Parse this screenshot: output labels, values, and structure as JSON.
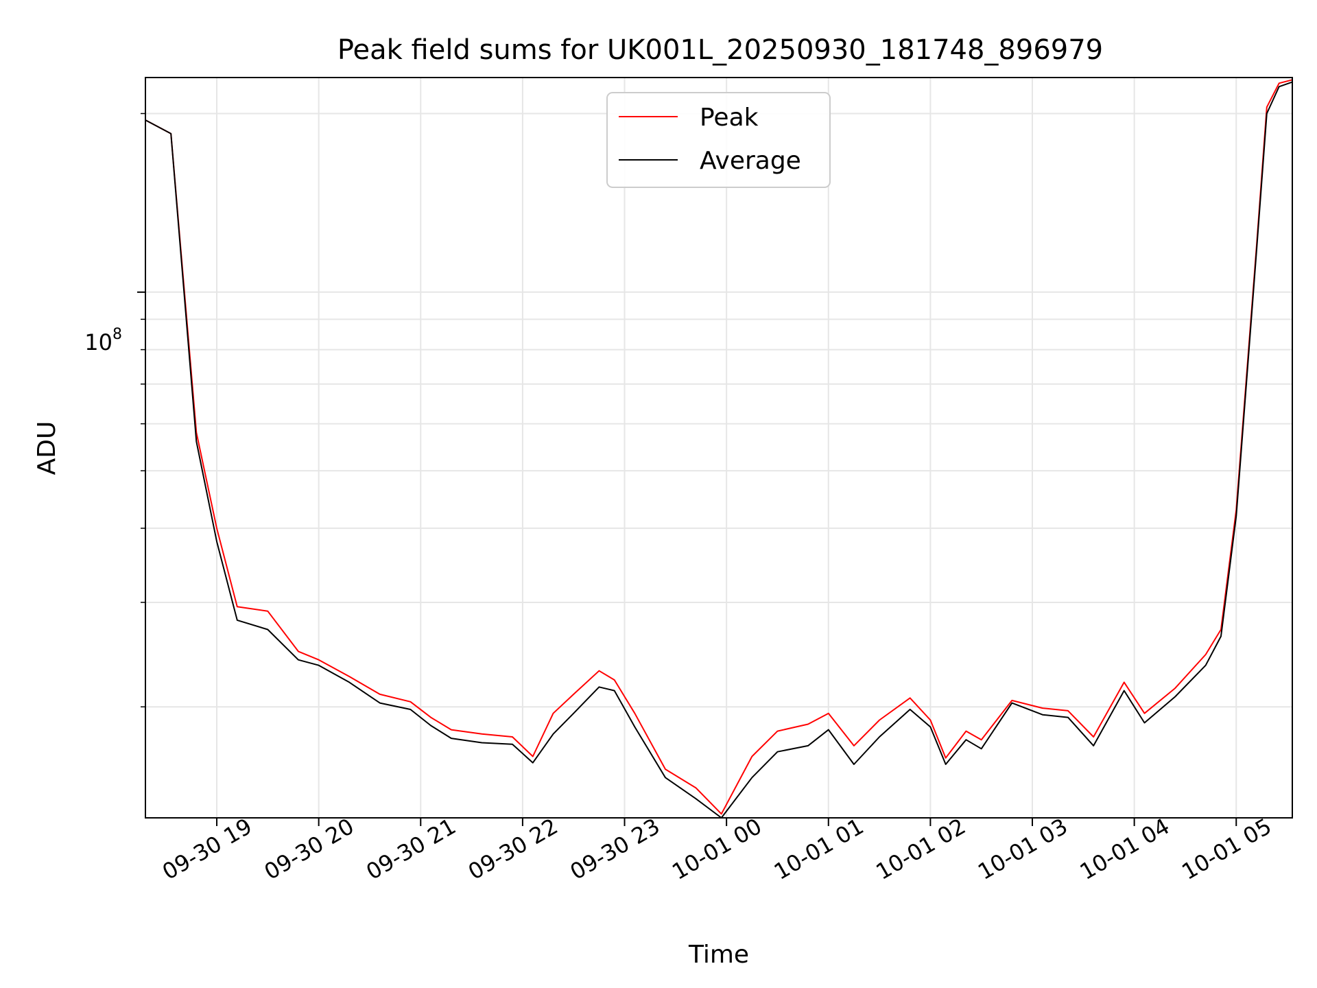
{
  "chart_data": {
    "type": "line",
    "title": "Peak field sums for UK001L_20250930_181748_896979",
    "xlabel": "Time",
    "ylabel": "ADU",
    "yscale": "log",
    "ylim": [
      13000000,
      230000000
    ],
    "xlim_hours": [
      18.3,
      5.55
    ],
    "x_ticks": [
      "09-30 19",
      "09-30 20",
      "09-30 21",
      "09-30 22",
      "09-30 23",
      "10-01 00",
      "10-01 01",
      "10-01 02",
      "10-01 03",
      "10-01 04",
      "10-01 05"
    ],
    "y_major_tick": {
      "value": 100000000,
      "base": "10",
      "exponent": "8"
    },
    "y_minor_ticks": [
      20000000,
      30000000,
      40000000,
      50000000,
      60000000,
      70000000,
      80000000,
      90000000,
      200000000
    ],
    "grid": true,
    "legend": {
      "position": "top-center",
      "entries": [
        "Peak",
        "Average"
      ]
    },
    "colors": {
      "peak": "#ff0000",
      "average": "#000000"
    },
    "series": [
      {
        "name": "Peak",
        "x_hours": [
          18.3,
          18.55,
          18.8,
          19.0,
          19.2,
          19.5,
          19.8,
          20.0,
          20.3,
          20.6,
          20.9,
          21.1,
          21.3,
          21.6,
          21.9,
          22.1,
          22.3,
          22.5,
          22.75,
          22.9,
          23.1,
          23.4,
          23.7,
          23.95,
          24.25,
          24.5,
          24.8,
          25.0,
          25.25,
          25.5,
          25.8,
          26.0,
          26.15,
          26.35,
          26.5,
          26.8,
          27.1,
          27.35,
          27.6,
          27.9,
          28.1,
          28.4,
          28.7,
          28.85,
          29.0,
          29.2,
          29.3,
          29.42,
          29.55
        ],
        "values": [
          195000000,
          185000000,
          58000000,
          40000000,
          29500000,
          29000000,
          24800000,
          24000000,
          22500000,
          21000000,
          20400000,
          19200000,
          18300000,
          18000000,
          17800000,
          16500000,
          19500000,
          21000000,
          23000000,
          22200000,
          19500000,
          15700000,
          14600000,
          13200000,
          16500000,
          18200000,
          18700000,
          19500000,
          17200000,
          19000000,
          20700000,
          19000000,
          16400000,
          18200000,
          17600000,
          20500000,
          19900000,
          19700000,
          17800000,
          22000000,
          19500000,
          21500000,
          24500000,
          27000000,
          43000000,
          120000000,
          205000000,
          225000000,
          228000000
        ]
      },
      {
        "name": "Average",
        "x_hours": [
          18.3,
          18.55,
          18.8,
          19.0,
          19.2,
          19.5,
          19.8,
          20.0,
          20.3,
          20.6,
          20.9,
          21.1,
          21.3,
          21.6,
          21.9,
          22.1,
          22.3,
          22.5,
          22.75,
          22.9,
          23.1,
          23.4,
          23.7,
          23.95,
          24.25,
          24.5,
          24.8,
          25.0,
          25.25,
          25.5,
          25.8,
          26.0,
          26.15,
          26.35,
          26.5,
          26.8,
          27.1,
          27.35,
          27.6,
          27.9,
          28.1,
          28.4,
          28.7,
          28.85,
          29.0,
          29.2,
          29.3,
          29.42,
          29.55
        ],
        "values": [
          195000000,
          185000000,
          56000000,
          38000000,
          28000000,
          27000000,
          24000000,
          23500000,
          22000000,
          20300000,
          19800000,
          18600000,
          17700000,
          17400000,
          17300000,
          16100000,
          18000000,
          19500000,
          21600000,
          21300000,
          18500000,
          15200000,
          14000000,
          13000000,
          15200000,
          16800000,
          17200000,
          18300000,
          16000000,
          17800000,
          19800000,
          18500000,
          16000000,
          17600000,
          17000000,
          20300000,
          19400000,
          19200000,
          17200000,
          21300000,
          18800000,
          20800000,
          23500000,
          26300000,
          42000000,
          118000000,
          200000000,
          222000000,
          226000000
        ]
      }
    ]
  }
}
